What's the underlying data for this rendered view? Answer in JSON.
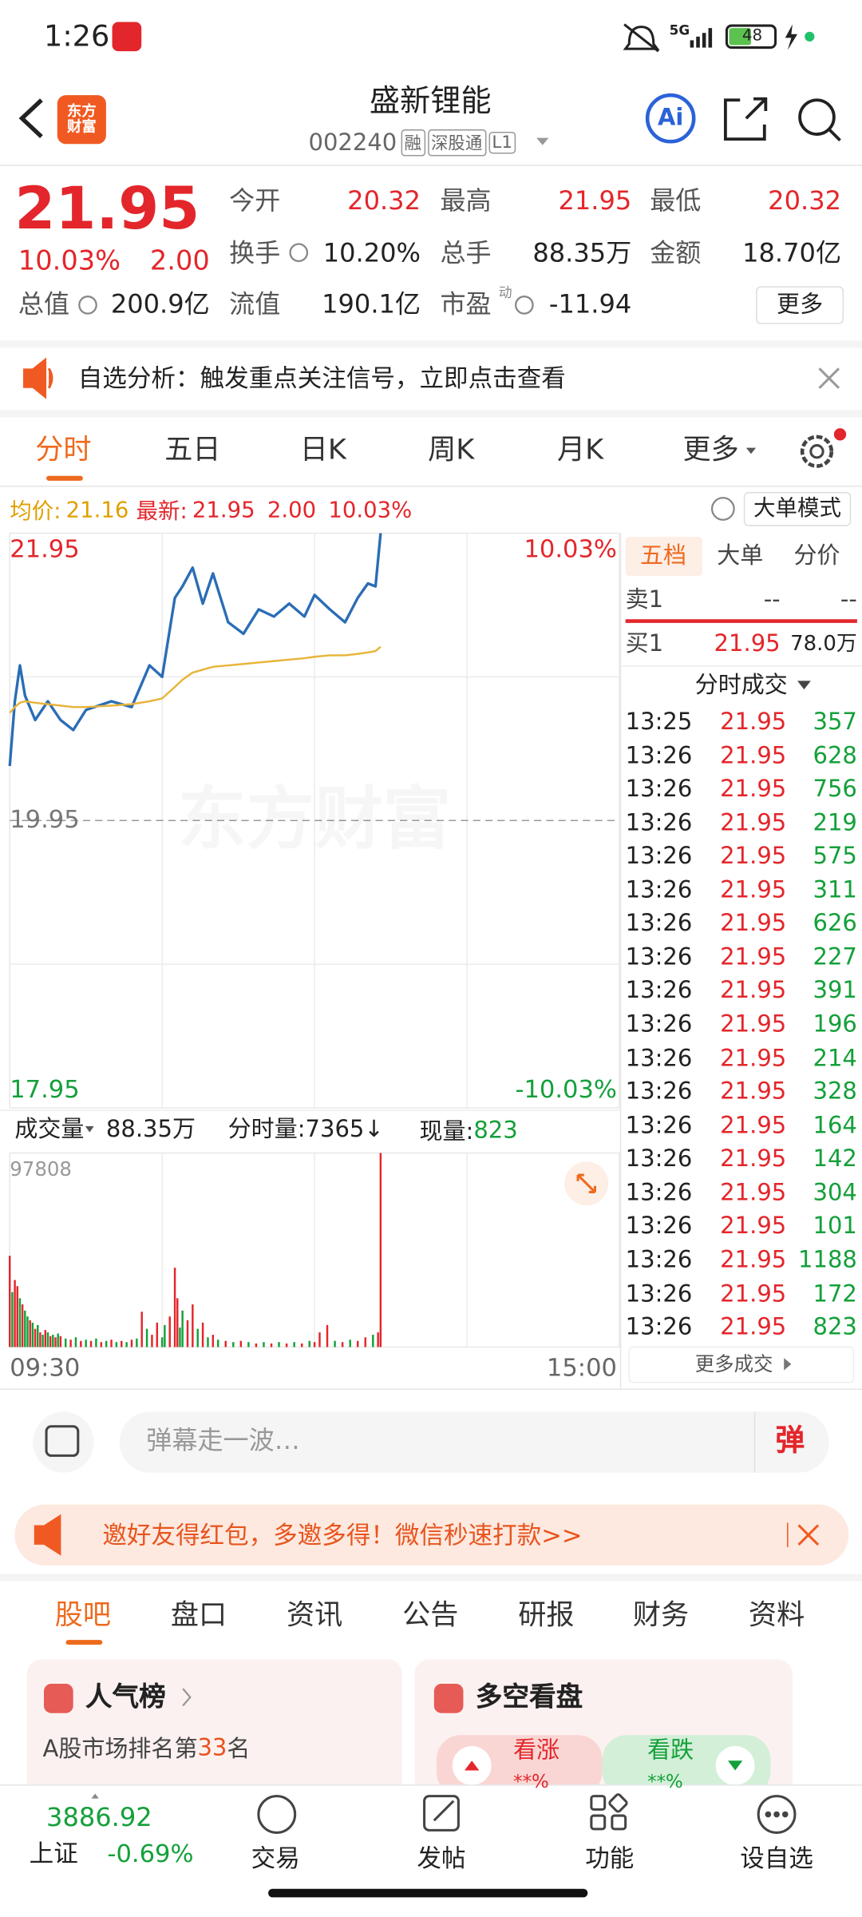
{
  "status_bar": {
    "time": "1:26",
    "network": "5G",
    "battery": "48"
  },
  "header": {
    "logo": "东方财富",
    "title": "盛新锂能",
    "code": "002240",
    "tags": [
      "融",
      "深股通",
      "L1"
    ],
    "ai": "Ai"
  },
  "quote": {
    "price": "21.95",
    "change_pct": "10.03%",
    "change": "2.00",
    "stats": [
      {
        "label": "今开",
        "value": "20.32"
      },
      {
        "label": "最高",
        "value": "21.95"
      },
      {
        "label": "最低",
        "value": "20.32"
      },
      {
        "label": "换手",
        "value": "10.20%"
      },
      {
        "label": "总手",
        "value": "88.35万"
      },
      {
        "label": "金额",
        "value": "18.70亿"
      },
      {
        "label": "总值",
        "value": "200.9亿"
      },
      {
        "label": "流值",
        "value": "190.1亿"
      },
      {
        "label": "市盈",
        "superscript": "动",
        "value": "-11.94"
      }
    ],
    "more": "更多"
  },
  "notice": {
    "text": "自选分析：触发重点关注信号，立即点击查看"
  },
  "period_tabs": [
    "分时",
    "五日",
    "日K",
    "周K",
    "月K",
    "更多"
  ],
  "legend_bar": {
    "avg": "21.16",
    "latest": "21.95",
    "change": "2.00",
    "change_pct": "10.03%",
    "mode": "大单模式"
  },
  "watermark": "东方财富",
  "chart_data": [
    {
      "type": "line",
      "x": [
        0,
        2,
        4,
        6,
        10,
        15,
        20,
        25,
        30,
        40,
        48,
        55,
        60,
        65,
        68,
        72,
        76,
        80,
        86,
        92,
        98,
        104,
        110,
        116,
        120,
        126,
        132,
        137,
        141,
        144,
        146
      ],
      "series": [
        {
          "name": "最新:",
          "color": "#2a6db5",
          "values": [
            20.33,
            20.78,
            21.03,
            20.82,
            20.65,
            20.78,
            20.65,
            20.58,
            20.72,
            20.78,
            20.74,
            21.03,
            20.95,
            21.5,
            21.58,
            21.71,
            21.46,
            21.67,
            21.33,
            21.25,
            21.42,
            21.37,
            21.46,
            21.37,
            21.52,
            21.42,
            21.33,
            21.5,
            21.6,
            21.58,
            21.95
          ]
        },
        {
          "name": "均价:",
          "color": "#e8b43a",
          "values": [
            20.7,
            20.74,
            20.77,
            20.78,
            20.77,
            20.76,
            20.75,
            20.74,
            20.74,
            20.75,
            20.76,
            20.78,
            20.8,
            20.88,
            20.93,
            20.98,
            21.0,
            21.02,
            21.03,
            21.04,
            21.05,
            21.06,
            21.07,
            21.08,
            21.09,
            21.1,
            21.1,
            21.11,
            21.12,
            21.13,
            21.16
          ]
        }
      ],
      "xlim": [
        0,
        240
      ],
      "xticks": [
        {
          "value": 60,
          "label": null
        },
        {
          "value": 120,
          "label": null
        },
        {
          "value": 180,
          "label": null
        }
      ],
      "ylim": [
        17.95,
        21.95
      ],
      "yticks": [
        21.95,
        {
          "value": 20.95,
          "label": null
        },
        19.95,
        {
          "value": 18.95,
          "label": null
        },
        17.95
      ],
      "y2lim": [
        -10.03,
        10.03
      ],
      "y2ticks": [
        {
          "value": 10.03,
          "label": "10.03%"
        },
        {
          "value": -10.03,
          "label": "-10.03%"
        }
      ]
    },
    {
      "type": "bar",
      "x": [
        0,
        1,
        2,
        3,
        4,
        5,
        6,
        7,
        8,
        9,
        10,
        11,
        12,
        13,
        14,
        15,
        16,
        17,
        18,
        19,
        20,
        22,
        24,
        26,
        28,
        30,
        32,
        34,
        36,
        38,
        40,
        42,
        44,
        46,
        48,
        50,
        52,
        54,
        56,
        58,
        60,
        61,
        63,
        65,
        66,
        67,
        68,
        70,
        72,
        74,
        76,
        78,
        80,
        82,
        85,
        88,
        91,
        94,
        97,
        100,
        103,
        106,
        109,
        112,
        115,
        118,
        120,
        122,
        125,
        128,
        131,
        134,
        137,
        140,
        143,
        145,
        146
      ],
      "values": [
        46000,
        27700,
        33800,
        30700,
        24600,
        21500,
        18400,
        15400,
        13500,
        12300,
        9200,
        11100,
        7400,
        6200,
        8600,
        7400,
        5500,
        6200,
        4900,
        6800,
        5500,
        4300,
        3700,
        4900,
        3100,
        3700,
        3100,
        4300,
        2500,
        3100,
        3700,
        2500,
        3100,
        2500,
        3700,
        4300,
        17800,
        9200,
        6200,
        12300,
        4900,
        11100,
        15400,
        40000,
        24600,
        9800,
        18400,
        13500,
        21500,
        9200,
        12300,
        4900,
        6200,
        3700,
        3100,
        2500,
        3100,
        2500,
        1800,
        2500,
        1800,
        2500,
        1800,
        2500,
        1800,
        3100,
        2500,
        7400,
        11100,
        3100,
        2500,
        3700,
        3100,
        4900,
        6200,
        7400,
        97808
      ],
      "colors": [
        "#e3262b",
        "#14a03a",
        "#e3262b",
        "#e3262b",
        "#14a03a",
        "#e3262b",
        "#14a03a",
        "#14a03a",
        "#e3262b",
        "#14a03a",
        "#e3262b",
        "#14a03a",
        "#e3262b",
        "#14a03a",
        "#e3262b",
        "#14a03a",
        "#e3262b",
        "#14a03a",
        "#e3262b",
        "#14a03a",
        "#e3262b",
        "#14a03a",
        "#e3262b",
        "#14a03a",
        "#e3262b",
        "#14a03a",
        "#e3262b",
        "#14a03a",
        "#e3262b",
        "#14a03a",
        "#e3262b",
        "#14a03a",
        "#e3262b",
        "#14a03a",
        "#e3262b",
        "#14a03a",
        "#e3262b",
        "#14a03a",
        "#e3262b",
        "#e3262b",
        "#14a03a",
        "#14a03a",
        "#e3262b",
        "#e3262b",
        "#e3262b",
        "#14a03a",
        "#14a03a",
        "#e3262b",
        "#e3262b",
        "#14a03a",
        "#e3262b",
        "#14a03a",
        "#e3262b",
        "#14a03a",
        "#e3262b",
        "#14a03a",
        "#e3262b",
        "#14a03a",
        "#e3262b",
        "#14a03a",
        "#e3262b",
        "#14a03a",
        "#e3262b",
        "#14a03a",
        "#e3262b",
        "#14a03a",
        "#e3262b",
        "#e3262b",
        "#e3262b",
        "#14a03a",
        "#e3262b",
        "#14a03a",
        "#e3262b",
        "#e3262b",
        "#14a03a",
        "#e3262b",
        "#e3262b"
      ],
      "xlim": [
        0,
        240
      ],
      "xticks": [
        {
          "value": 0,
          "label": "09:30"
        },
        {
          "value": 60,
          "label": null
        },
        {
          "value": 120,
          "label": null
        },
        {
          "value": 180,
          "label": null
        },
        {
          "value": 240,
          "label": "15:00"
        }
      ],
      "ylim": [
        0,
        97808
      ],
      "yticks": [
        97808
      ]
    }
  ],
  "volume_header": {
    "label": "成交量",
    "total": "88.35万",
    "minute_volume": "分时量:7365↓",
    "current_label": "现量:",
    "current": "823"
  },
  "order_book": {
    "tabs": [
      "五档",
      "大单",
      "分价"
    ],
    "sell": [
      "卖1",
      "--",
      "--"
    ],
    "buy": [
      "买1",
      "21.95",
      "78.0万"
    ]
  },
  "trades": {
    "title": "分时成交",
    "rows": [
      [
        "13:25",
        "21.95",
        "357"
      ],
      [
        "13:26",
        "21.95",
        "628"
      ],
      [
        "13:26",
        "21.95",
        "756"
      ],
      [
        "13:26",
        "21.95",
        "219"
      ],
      [
        "13:26",
        "21.95",
        "575"
      ],
      [
        "13:26",
        "21.95",
        "311"
      ],
      [
        "13:26",
        "21.95",
        "626"
      ],
      [
        "13:26",
        "21.95",
        "227"
      ],
      [
        "13:26",
        "21.95",
        "391"
      ],
      [
        "13:26",
        "21.95",
        "196"
      ],
      [
        "13:26",
        "21.95",
        "214"
      ],
      [
        "13:26",
        "21.95",
        "328"
      ],
      [
        "13:26",
        "21.95",
        "164"
      ],
      [
        "13:26",
        "21.95",
        "142"
      ],
      [
        "13:26",
        "21.95",
        "304"
      ],
      [
        "13:26",
        "21.95",
        "101"
      ],
      [
        "13:26",
        "21.95",
        "1188"
      ],
      [
        "13:26",
        "21.95",
        "172"
      ],
      [
        "13:26",
        "21.95",
        "823"
      ]
    ],
    "more": "更多成交"
  },
  "comment": {
    "placeholder": "弹幕走一波…",
    "button": "弹"
  },
  "banner": {
    "text": "邀好友得红包，多邀多得！微信秒速打款>>"
  },
  "section_tabs": [
    "股吧",
    "盘口",
    "资讯",
    "公告",
    "研报",
    "财务",
    "资料"
  ],
  "cards": {
    "popularity": {
      "title": "人气榜",
      "rank_prefix": "A股市场排名第",
      "rank": "33",
      "rank_suffix": "名"
    },
    "sentiment": {
      "title": "多空看盘",
      "bull": "看涨",
      "bear": "看跌",
      "bull_pct": "**%",
      "bear_pct": "**%"
    }
  },
  "bottom_nav": {
    "index_value": "3886.92",
    "index_name": "上证",
    "index_change": "-0.69%",
    "items": [
      "交易",
      "发帖",
      "功能",
      "设自选"
    ]
  }
}
